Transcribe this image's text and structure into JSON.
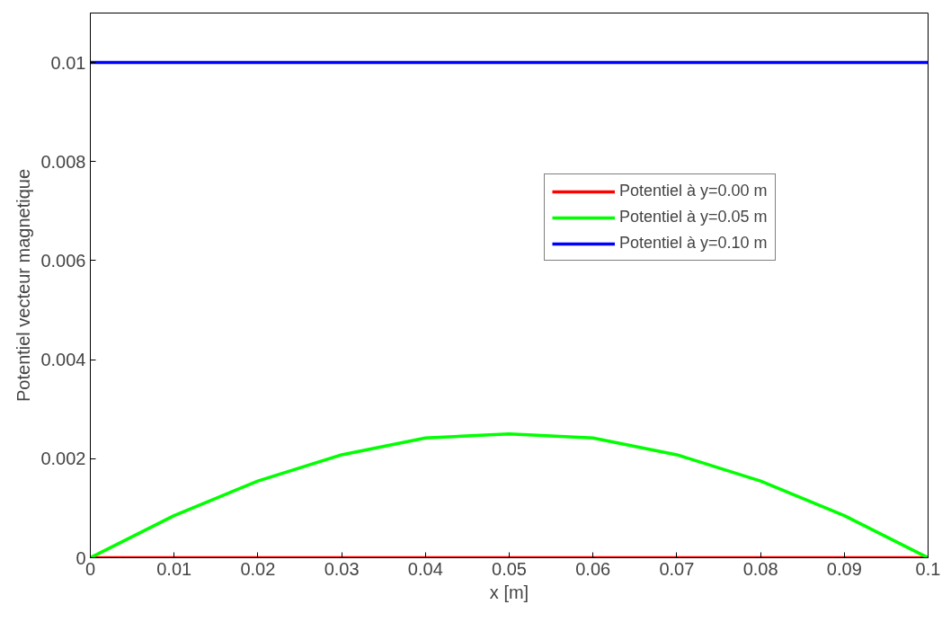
{
  "chart_data": {
    "type": "line",
    "xlabel": "x [m]",
    "ylabel": "Potentiel vecteur magnetique",
    "x": [
      0,
      0.01,
      0.02,
      0.03,
      0.04,
      0.05,
      0.06,
      0.07,
      0.08,
      0.09,
      0.1
    ],
    "series": [
      {
        "name": "Potentiel à y=0.00 m",
        "color": "#ff0000",
        "values": [
          0,
          0,
          0,
          0,
          0,
          0,
          0,
          0,
          0,
          0,
          0
        ]
      },
      {
        "name": "Potentiel à y=0.05 m",
        "color": "#00ff00",
        "values": [
          0,
          0.00085,
          0.00155,
          0.00208,
          0.00242,
          0.0025,
          0.00242,
          0.00208,
          0.00155,
          0.00085,
          0
        ]
      },
      {
        "name": "Potentiel à y=0.10 m",
        "color": "#0000ff",
        "values": [
          0.01,
          0.01,
          0.01,
          0.01,
          0.01,
          0.01,
          0.01,
          0.01,
          0.01,
          0.01,
          0.01
        ]
      }
    ],
    "xlim": [
      0,
      0.1
    ],
    "ylim": [
      0,
      0.011
    ],
    "xticks": [
      0,
      0.01,
      0.02,
      0.03,
      0.04,
      0.05,
      0.06,
      0.07,
      0.08,
      0.09,
      0.1
    ],
    "yticks": [
      0,
      0.002,
      0.004,
      0.006,
      0.008,
      0.01
    ],
    "legend": "top right",
    "grid": false,
    "line_style": "solid",
    "marker": "none"
  }
}
